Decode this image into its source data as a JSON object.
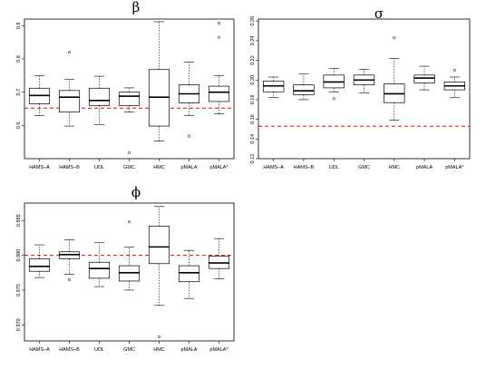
{
  "chart_data": [
    {
      "type": "boxplot",
      "title": "β",
      "categories": [
        "HAMS–A",
        "HAMS–B",
        "UDL",
        "GMC",
        "HMC",
        "pMALA",
        "pMALA*"
      ],
      "ylim": [
        0.5,
        0.92
      ],
      "yticks": [
        0.6,
        0.7,
        0.8,
        0.9
      ],
      "ytick_labels": [
        "0.6",
        "0.7",
        "0.8",
        "0.9"
      ],
      "reference_line": 0.652,
      "boxes": [
        {
          "whisker_low": 0.63,
          "q1": 0.665,
          "median": 0.69,
          "q3": 0.712,
          "whisker_high": 0.75,
          "outliers": []
        },
        {
          "whisker_low": 0.598,
          "q1": 0.64,
          "median": 0.685,
          "q3": 0.705,
          "whisker_high": 0.738,
          "outliers": [
            0.82
          ]
        },
        {
          "whisker_low": 0.602,
          "q1": 0.66,
          "median": 0.675,
          "q3": 0.712,
          "whisker_high": 0.748,
          "outliers": []
        },
        {
          "whisker_low": 0.64,
          "q1": 0.66,
          "median": 0.688,
          "q3": 0.7,
          "whisker_high": 0.713,
          "outliers": [
            0.518
          ]
        },
        {
          "whisker_low": 0.553,
          "q1": 0.598,
          "median": 0.685,
          "q3": 0.768,
          "whisker_high": 0.912,
          "outliers": []
        },
        {
          "whisker_low": 0.63,
          "q1": 0.668,
          "median": 0.695,
          "q3": 0.722,
          "whisker_high": 0.79,
          "outliers": [
            0.568
          ]
        },
        {
          "whisker_low": 0.635,
          "q1": 0.672,
          "median": 0.7,
          "q3": 0.718,
          "whisker_high": 0.75,
          "outliers": [
            0.865,
            0.908
          ]
        }
      ]
    },
    {
      "type": "boxplot",
      "title": "σ",
      "categories": [
        "HAMS–A",
        "HAMS–B",
        "UDL",
        "GMC",
        "HMC",
        "pMALA",
        "pMALA*"
      ],
      "ylim": [
        0.12,
        0.262
      ],
      "yticks": [
        0.12,
        0.14,
        0.16,
        0.18,
        0.2,
        0.22,
        0.24,
        0.26
      ],
      "ytick_labels": [
        "0.12",
        "0.14",
        "0.16",
        "0.18",
        "0.20",
        "0.22",
        "0.24",
        "0.26"
      ],
      "reference_line": 0.153,
      "boxes": [
        {
          "whisker_low": 0.182,
          "q1": 0.188,
          "median": 0.194,
          "q3": 0.199,
          "whisker_high": 0.203,
          "outliers": []
        },
        {
          "whisker_low": 0.18,
          "q1": 0.185,
          "median": 0.189,
          "q3": 0.195,
          "whisker_high": 0.206,
          "outliers": []
        },
        {
          "whisker_low": 0.188,
          "q1": 0.192,
          "median": 0.198,
          "q3": 0.205,
          "whisker_high": 0.212,
          "outliers": [
            0.181
          ]
        },
        {
          "whisker_low": 0.187,
          "q1": 0.195,
          "median": 0.2,
          "q3": 0.205,
          "whisker_high": 0.211,
          "outliers": []
        },
        {
          "whisker_low": 0.159,
          "q1": 0.177,
          "median": 0.186,
          "q3": 0.196,
          "whisker_high": 0.222,
          "outliers": [
            0.243
          ]
        },
        {
          "whisker_low": 0.19,
          "q1": 0.197,
          "median": 0.202,
          "q3": 0.205,
          "whisker_high": 0.214,
          "outliers": []
        },
        {
          "whisker_low": 0.182,
          "q1": 0.19,
          "median": 0.194,
          "q3": 0.198,
          "whisker_high": 0.203,
          "outliers": [
            0.21
          ]
        }
      ]
    },
    {
      "type": "boxplot",
      "title": "ϕ",
      "categories": [
        "HAMS–A",
        "HAMS–B",
        "UDL",
        "GMC",
        "HMC",
        "pMALA",
        "pMALA*"
      ],
      "ylim": [
        0.9677,
        0.9875
      ],
      "yticks": [
        0.97,
        0.975,
        0.98,
        0.985
      ],
      "ytick_labels": [
        "0.970",
        "0.975",
        "0.980",
        "0.985"
      ],
      "reference_line": 0.98,
      "boxes": [
        {
          "whisker_low": 0.9768,
          "q1": 0.9777,
          "median": 0.9784,
          "q3": 0.9795,
          "whisker_high": 0.9815,
          "outliers": []
        },
        {
          "whisker_low": 0.9773,
          "q1": 0.9795,
          "median": 0.9801,
          "q3": 0.9805,
          "whisker_high": 0.9822,
          "outliers": [
            0.9765
          ]
        },
        {
          "whisker_low": 0.9755,
          "q1": 0.9767,
          "median": 0.9781,
          "q3": 0.979,
          "whisker_high": 0.9818,
          "outliers": []
        },
        {
          "whisker_low": 0.975,
          "q1": 0.9763,
          "median": 0.9775,
          "q3": 0.9785,
          "whisker_high": 0.9812,
          "outliers": [
            0.9848
          ]
        },
        {
          "whisker_low": 0.9728,
          "q1": 0.9788,
          "median": 0.9812,
          "q3": 0.9842,
          "whisker_high": 0.987,
          "outliers": [
            0.9683
          ]
        },
        {
          "whisker_low": 0.9738,
          "q1": 0.9762,
          "median": 0.9775,
          "q3": 0.9785,
          "whisker_high": 0.9807,
          "outliers": []
        },
        {
          "whisker_low": 0.9766,
          "q1": 0.9781,
          "median": 0.9789,
          "q3": 0.9799,
          "whisker_high": 0.9824,
          "outliers": []
        }
      ]
    }
  ],
  "colors": {
    "reference_line": "#ff0000",
    "box": "#000000"
  }
}
